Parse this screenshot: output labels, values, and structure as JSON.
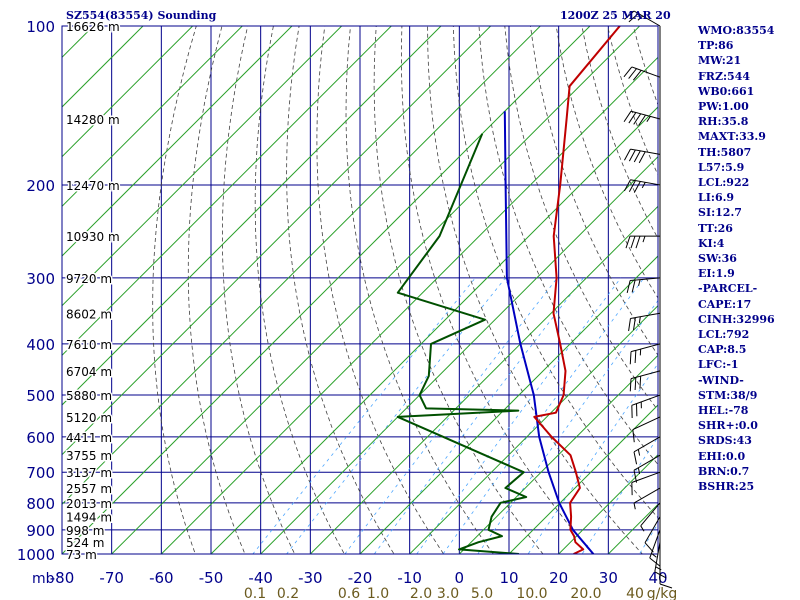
{
  "header": {
    "station": "SZ554(83554) Sounding",
    "time": "1200Z 25 MAR 20"
  },
  "indices": [
    "WMO:83554",
    "TP:86",
    "MW:21",
    "FRZ:544",
    "WB0:661",
    "PW:1.00",
    "RH:35.8",
    "MAXT:33.9",
    "TH:5807",
    "L57:5.9",
    "LCL:922",
    "LI:6.9",
    "SI:12.7",
    "TT:26",
    "KI:4",
    "SW:36",
    "EI:1.9",
    "-PARCEL-",
    "CAPE:17",
    "CINH:32996",
    "LCL:792",
    "CAP:8.5",
    "LFC:-1",
    "-WIND-",
    "STM:38/9",
    "HEL:-78",
    "SHR+:0.0",
    "SRDS:43",
    "EHI:0.0",
    "BRN:0.7",
    "BSHR:25"
  ],
  "colors": {
    "background": "#ffffff",
    "grid": "#00008b",
    "isotherm": "#2aa02a",
    "dry_adiabat": "#404040",
    "mixing_ratio": "#4da6ff",
    "temperature": "#c00000",
    "dewpoint": "#005000",
    "parcel": "#0000c0",
    "text": "#00008b",
    "mixing_ratio_label": "#6b5a1e"
  },
  "chart_data": {
    "type": "skew-t",
    "pressure_axis": {
      "unit": "mb",
      "scale": "log",
      "ticks": [
        100,
        200,
        300,
        400,
        500,
        600,
        700,
        800,
        900,
        1000
      ]
    },
    "temperature_axis": {
      "ticks": [
        -80,
        -70,
        -60,
        -50,
        -40,
        -30,
        -20,
        -10,
        0,
        10,
        20,
        30,
        40
      ],
      "range": [
        -80,
        40
      ]
    },
    "height_labels": [
      {
        "p": 100,
        "label": "16626 m"
      },
      {
        "p": 150,
        "label": "14280 m"
      },
      {
        "p": 200,
        "label": "12470 m"
      },
      {
        "p": 250,
        "label": "10930 m"
      },
      {
        "p": 300,
        "label": "9720 m"
      },
      {
        "p": 350,
        "label": "8602 m"
      },
      {
        "p": 400,
        "label": "7610 m"
      },
      {
        "p": 450,
        "label": "6704 m"
      },
      {
        "p": 500,
        "label": "5880 m"
      },
      {
        "p": 550,
        "label": "5120 m"
      },
      {
        "p": 600,
        "label": "4411 m"
      },
      {
        "p": 650,
        "label": "3755 m"
      },
      {
        "p": 700,
        "label": "3137 m"
      },
      {
        "p": 750,
        "label": "2557 m"
      },
      {
        "p": 800,
        "label": "2013 m"
      },
      {
        "p": 850,
        "label": "1494 m"
      },
      {
        "p": 900,
        "label": "998 m"
      },
      {
        "p": 950,
        "label": "524 m"
      },
      {
        "p": 1000,
        "label": "73 m"
      }
    ],
    "mixing_ratio_labels": [
      "0.1",
      "0.2",
      "0.6",
      "1.0",
      "2.0",
      "3.0",
      "5.0",
      "10.0",
      "20.0",
      "40",
      "g/kg"
    ],
    "temperature": [
      [
        1000,
        23
      ],
      [
        980,
        24
      ],
      [
        950,
        21
      ],
      [
        925,
        19.5
      ],
      [
        900,
        17.5
      ],
      [
        850,
        15
      ],
      [
        800,
        12
      ],
      [
        750,
        11
      ],
      [
        700,
        7
      ],
      [
        650,
        2.5
      ],
      [
        600,
        -5
      ],
      [
        550,
        -12.5
      ],
      [
        540,
        -9
      ],
      [
        500,
        -11
      ],
      [
        450,
        -15.5
      ],
      [
        400,
        -22
      ],
      [
        350,
        -29.5
      ],
      [
        300,
        -36
      ],
      [
        250,
        -45
      ],
      [
        200,
        -54
      ],
      [
        150,
        -66
      ],
      [
        130,
        -72
      ],
      [
        100,
        -74
      ]
    ],
    "dewpoint": [
      [
        1000,
        12
      ],
      [
        980,
        -1
      ],
      [
        950,
        1.5
      ],
      [
        925,
        5
      ],
      [
        900,
        1
      ],
      [
        850,
        -1
      ],
      [
        800,
        -2
      ],
      [
        780,
        2
      ],
      [
        750,
        -4
      ],
      [
        700,
        -3.5
      ],
      [
        550,
        -40
      ],
      [
        535,
        -17
      ],
      [
        530,
        -36
      ],
      [
        500,
        -40
      ],
      [
        460,
        -42
      ],
      [
        400,
        -48
      ],
      [
        360,
        -42
      ],
      [
        320,
        -65
      ],
      [
        250,
        -68
      ],
      [
        160,
        -80
      ]
    ],
    "parcel": [
      [
        1000,
        27
      ],
      [
        900,
        18
      ],
      [
        800,
        9.8
      ],
      [
        700,
        1.5
      ],
      [
        600,
        -7.5
      ],
      [
        500,
        -17
      ],
      [
        400,
        -30
      ],
      [
        300,
        -46
      ],
      [
        200,
        -65
      ],
      [
        145,
        -80
      ]
    ],
    "wind_barbs": [
      {
        "p": 100,
        "dir": 300,
        "kt": 25
      },
      {
        "p": 125,
        "dir": 290,
        "kt": 30
      },
      {
        "p": 150,
        "dir": 285,
        "kt": 45
      },
      {
        "p": 175,
        "dir": 280,
        "kt": 40
      },
      {
        "p": 200,
        "dir": 280,
        "kt": 35
      },
      {
        "p": 250,
        "dir": 270,
        "kt": 35
      },
      {
        "p": 300,
        "dir": 265,
        "kt": 25
      },
      {
        "p": 350,
        "dir": 260,
        "kt": 25
      },
      {
        "p": 400,
        "dir": 255,
        "kt": 25
      },
      {
        "p": 450,
        "dir": 255,
        "kt": 30
      },
      {
        "p": 500,
        "dir": 250,
        "kt": 25
      },
      {
        "p": 550,
        "dir": 245,
        "kt": 10
      },
      {
        "p": 600,
        "dir": 240,
        "kt": 15
      },
      {
        "p": 650,
        "dir": 240,
        "kt": 15
      },
      {
        "p": 700,
        "dir": 250,
        "kt": 10
      },
      {
        "p": 750,
        "dir": 240,
        "kt": 5
      },
      {
        "p": 800,
        "dir": 220,
        "kt": 5
      },
      {
        "p": 850,
        "dir": 210,
        "kt": 10
      },
      {
        "p": 900,
        "dir": 200,
        "kt": 15
      },
      {
        "p": 950,
        "dir": 190,
        "kt": 15
      },
      {
        "p": 1000,
        "dir": 180,
        "kt": 10
      }
    ]
  }
}
